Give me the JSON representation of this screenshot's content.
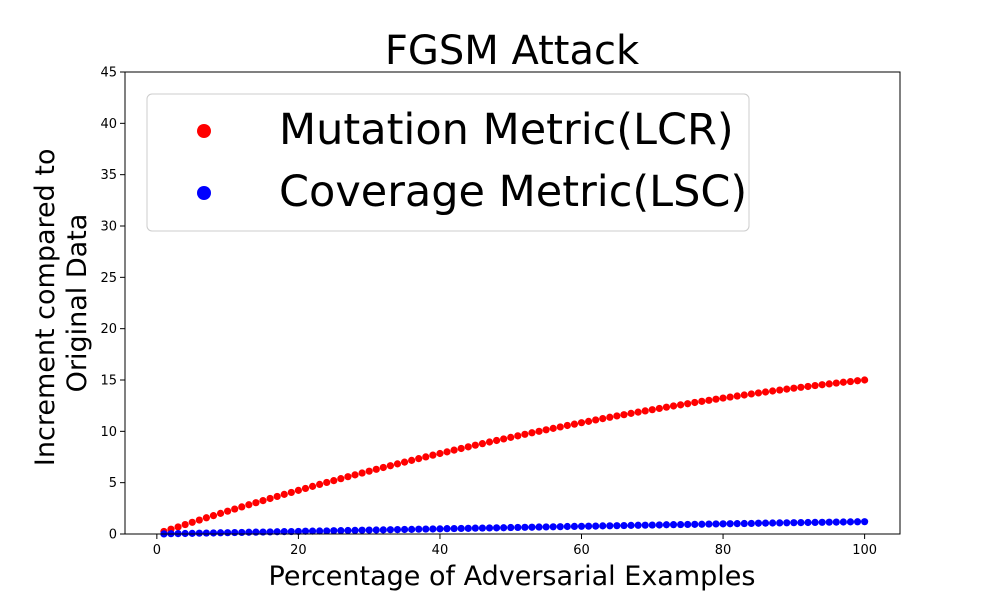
{
  "chart_data": {
    "type": "scatter",
    "title": "FGSM Attack",
    "xlabel": "Percentage of Adversarial Examples",
    "ylabel": [
      "Increment compared to",
      "Original Data"
    ],
    "xlim": [
      -4.5,
      105
    ],
    "ylim": [
      0,
      45
    ],
    "xticks": [
      0,
      20,
      40,
      60,
      80,
      100
    ],
    "yticks": [
      0,
      5,
      10,
      15,
      20,
      25,
      30,
      35,
      40,
      45
    ],
    "grid": false,
    "legend_position": "upper-left",
    "x": [
      1,
      2,
      3,
      4,
      5,
      6,
      7,
      8,
      9,
      10,
      11,
      12,
      13,
      14,
      15,
      16,
      17,
      18,
      19,
      20,
      21,
      22,
      23,
      24,
      25,
      26,
      27,
      28,
      29,
      30,
      31,
      32,
      33,
      34,
      35,
      36,
      37,
      38,
      39,
      40,
      41,
      42,
      43,
      44,
      45,
      46,
      47,
      48,
      49,
      50,
      51,
      52,
      53,
      54,
      55,
      56,
      57,
      58,
      59,
      60,
      61,
      62,
      63,
      64,
      65,
      66,
      67,
      68,
      69,
      70,
      71,
      72,
      73,
      74,
      75,
      76,
      77,
      78,
      79,
      80,
      81,
      82,
      83,
      84,
      85,
      86,
      87,
      88,
      89,
      90,
      91,
      92,
      93,
      94,
      95,
      96,
      97,
      98,
      99,
      100
    ],
    "series": [
      {
        "name": "Mutation Metric(LCR)",
        "color": "#ff0000",
        "values": [
          0.25,
          0.47,
          0.69,
          0.92,
          1.14,
          1.36,
          1.58,
          1.79,
          2.01,
          2.22,
          2.43,
          2.64,
          2.85,
          3.05,
          3.25,
          3.46,
          3.66,
          3.86,
          4.05,
          4.25,
          4.44,
          4.64,
          4.83,
          5.02,
          5.2,
          5.39,
          5.58,
          5.76,
          5.94,
          6.12,
          6.3,
          6.48,
          6.65,
          6.83,
          7.0,
          7.17,
          7.34,
          7.51,
          7.68,
          7.84,
          8.0,
          8.17,
          8.33,
          8.49,
          8.65,
          8.8,
          8.96,
          9.11,
          9.26,
          9.41,
          9.56,
          9.71,
          9.86,
          10.0,
          10.15,
          10.29,
          10.43,
          10.57,
          10.7,
          10.84,
          10.97,
          11.11,
          11.24,
          11.37,
          11.5,
          11.62,
          11.75,
          11.87,
          11.99,
          12.11,
          12.23,
          12.35,
          12.47,
          12.58,
          12.69,
          12.81,
          12.92,
          13.02,
          13.13,
          13.24,
          13.34,
          13.44,
          13.54,
          13.64,
          13.74,
          13.83,
          13.93,
          14.02,
          14.11,
          14.2,
          14.29,
          14.37,
          14.46,
          14.54,
          14.62,
          14.7,
          14.78,
          14.85,
          14.93,
          15.0
        ]
      },
      {
        "name": "Coverage Metric(LSC)",
        "color": "#0000ff",
        "values": [
          0.01,
          0.03,
          0.04,
          0.05,
          0.06,
          0.08,
          0.09,
          0.1,
          0.12,
          0.13,
          0.14,
          0.15,
          0.17,
          0.18,
          0.19,
          0.2,
          0.22,
          0.23,
          0.24,
          0.25,
          0.27,
          0.28,
          0.29,
          0.3,
          0.32,
          0.33,
          0.34,
          0.35,
          0.37,
          0.38,
          0.39,
          0.4,
          0.42,
          0.43,
          0.44,
          0.45,
          0.47,
          0.48,
          0.49,
          0.5,
          0.52,
          0.53,
          0.54,
          0.55,
          0.57,
          0.58,
          0.59,
          0.6,
          0.61,
          0.63,
          0.64,
          0.65,
          0.66,
          0.68,
          0.69,
          0.7,
          0.71,
          0.73,
          0.74,
          0.75,
          0.76,
          0.77,
          0.79,
          0.8,
          0.81,
          0.82,
          0.84,
          0.85,
          0.86,
          0.87,
          0.88,
          0.9,
          0.91,
          0.92,
          0.93,
          0.94,
          0.95,
          0.97,
          0.98,
          0.99,
          1.0,
          1.01,
          1.02,
          1.03,
          1.05,
          1.06,
          1.07,
          1.08,
          1.09,
          1.1,
          1.11,
          1.12,
          1.13,
          1.14,
          1.15,
          1.16,
          1.17,
          1.18,
          1.19,
          1.2
        ]
      }
    ]
  }
}
